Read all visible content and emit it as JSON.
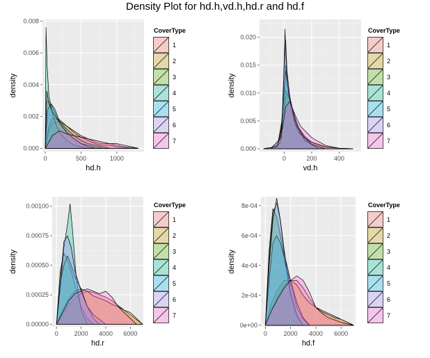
{
  "title": "Density Plot for hd.h,vd.h,hd.r and hd.f",
  "palette": {
    "1": "#F8766D",
    "2": "#C49A00",
    "3": "#53B400",
    "4": "#00C094",
    "5": "#00B6EB",
    "6": "#A58AFF",
    "7": "#FB61D7"
  },
  "chart_data": [
    {
      "type": "area",
      "xlabel": "hd.h",
      "ylabel": "density",
      "xlim": [
        -40,
        1380
      ],
      "ylim": [
        -0.0002,
        0.0081
      ],
      "xticks": [
        0,
        500,
        1000
      ],
      "xtick_labels": [
        "0",
        "500",
        "1000"
      ],
      "yticks": [
        0,
        0.002,
        0.004,
        0.006,
        0.008
      ],
      "ytick_labels": [
        "0.000",
        "0.002",
        "0.004",
        "0.006",
        "0.008"
      ],
      "legend_title": "CoverType",
      "legend_position": "right",
      "series": [
        {
          "name": "1",
          "x": [
            0,
            50,
            100,
            200,
            300,
            400,
            500,
            600,
            700,
            800,
            900,
            1000,
            1100,
            1200,
            1300
          ],
          "values": [
            0,
            0.0012,
            0.0016,
            0.0017,
            0.0014,
            0.0011,
            0.0008,
            0.0006,
            0.0004,
            0.0003,
            0.0003,
            0.0002,
            0.0001,
            5e-05,
            0
          ]
        },
        {
          "name": "2",
          "x": [
            0,
            50,
            100,
            200,
            300,
            400,
            500,
            600,
            700,
            800,
            900,
            1000,
            1100,
            1200,
            1300
          ],
          "values": [
            0,
            0.0014,
            0.0019,
            0.0018,
            0.0014,
            0.001,
            0.0007,
            0.0005,
            0.0003,
            0.0002,
            0.0002,
            0.0001,
            5e-05,
            0,
            0
          ]
        },
        {
          "name": "3",
          "x": [
            0,
            20,
            60,
            100,
            150,
            200,
            300,
            400,
            500,
            600,
            700,
            800
          ],
          "values": [
            0,
            0.003,
            0.0029,
            0.0026,
            0.0021,
            0.0016,
            0.001,
            0.0006,
            0.0003,
            0.0002,
            0.0001,
            0
          ]
        },
        {
          "name": "4",
          "x": [
            0,
            10,
            25,
            50,
            100,
            150,
            200,
            300,
            400,
            500,
            600
          ],
          "values": [
            0,
            0.0076,
            0.0052,
            0.0033,
            0.0022,
            0.0015,
            0.001,
            0.0005,
            0.0002,
            0.0001,
            0
          ]
        },
        {
          "name": "5",
          "x": [
            0,
            30,
            80,
            130,
            200,
            300,
            400,
            500,
            600,
            700,
            800,
            900
          ],
          "values": [
            0,
            0.0024,
            0.0028,
            0.0025,
            0.0017,
            0.0012,
            0.0008,
            0.0005,
            0.0003,
            0.0002,
            0.0001,
            0
          ]
        },
        {
          "name": "6",
          "x": [
            0,
            20,
            50,
            100,
            200,
            300,
            400,
            500,
            600,
            700
          ],
          "values": [
            0,
            0.0036,
            0.0028,
            0.0023,
            0.0016,
            0.001,
            0.0006,
            0.0003,
            0.0001,
            0
          ]
        },
        {
          "name": "7",
          "x": [
            0,
            100,
            200,
            300,
            400,
            500,
            600,
            700,
            800,
            900,
            1000,
            1100,
            1200,
            1300
          ],
          "values": [
            0,
            0.0008,
            0.0011,
            0.0009,
            0.0008,
            0.0007,
            0.0006,
            0.0005,
            0.0004,
            0.0003,
            0.0003,
            0.0002,
            0.0001,
            0
          ]
        }
      ]
    },
    {
      "type": "area",
      "xlabel": "vd.h",
      "ylabel": "density",
      "xlim": [
        -180,
        560
      ],
      "ylim": [
        -0.0005,
        0.0232
      ],
      "xticks": [
        0,
        200,
        400
      ],
      "xtick_labels": [
        "0",
        "200",
        "400"
      ],
      "yticks": [
        0,
        0.005,
        0.01,
        0.015,
        0.02
      ],
      "ytick_labels": [
        "0.000",
        "0.005",
        "0.010",
        "0.015",
        "0.020"
      ],
      "legend_title": "CoverType",
      "legend_position": "right",
      "series": [
        {
          "name": "1",
          "x": [
            -150,
            -50,
            -10,
            10,
            30,
            60,
            100,
            150,
            200,
            300,
            400,
            500
          ],
          "values": [
            0,
            0.0004,
            0.005,
            0.009,
            0.01,
            0.007,
            0.004,
            0.0022,
            0.0012,
            0.0004,
            0.0001,
            0
          ]
        },
        {
          "name": "2",
          "x": [
            -150,
            -50,
            -10,
            10,
            30,
            60,
            100,
            150,
            200,
            300,
            400,
            500
          ],
          "values": [
            0,
            0.0004,
            0.006,
            0.0105,
            0.0095,
            0.0065,
            0.0038,
            0.002,
            0.0011,
            0.0003,
            0.0001,
            0
          ]
        },
        {
          "name": "3",
          "x": [
            -100,
            -30,
            0,
            10,
            20,
            40,
            80,
            120,
            200,
            300
          ],
          "values": [
            0,
            0.001,
            0.01,
            0.015,
            0.0125,
            0.009,
            0.005,
            0.0025,
            0.0008,
            0
          ]
        },
        {
          "name": "4",
          "x": [
            -100,
            -20,
            0,
            5,
            15,
            30,
            60,
            100,
            200,
            300
          ],
          "values": [
            0,
            0.002,
            0.016,
            0.0215,
            0.015,
            0.01,
            0.006,
            0.003,
            0.0008,
            0
          ]
        },
        {
          "name": "5",
          "x": [
            -100,
            -30,
            0,
            10,
            20,
            40,
            80,
            120,
            200,
            300
          ],
          "values": [
            0,
            0.001,
            0.011,
            0.014,
            0.012,
            0.009,
            0.0055,
            0.0028,
            0.0008,
            0
          ]
        },
        {
          "name": "6",
          "x": [
            -100,
            -20,
            0,
            10,
            20,
            40,
            80,
            150,
            250
          ],
          "values": [
            0,
            0.002,
            0.015,
            0.0195,
            0.014,
            0.0095,
            0.0045,
            0.0015,
            0
          ]
        },
        {
          "name": "7",
          "x": [
            -150,
            -50,
            -10,
            10,
            40,
            80,
            120,
            200,
            300,
            400,
            500
          ],
          "values": [
            0,
            0.0004,
            0.004,
            0.0075,
            0.0085,
            0.006,
            0.004,
            0.002,
            0.0006,
            0.0001,
            0
          ]
        }
      ]
    },
    {
      "type": "area",
      "xlabel": "hd.r",
      "ylabel": "density",
      "xlim": [
        -350,
        7050
      ],
      "ylim": [
        -2e-05,
        0.00108
      ],
      "xticks": [
        0,
        2000,
        4000,
        6000
      ],
      "xtick_labels": [
        "0",
        "2000",
        "4000",
        "6000"
      ],
      "yticks": [
        0,
        0.00025,
        0.0005,
        0.00075,
        0.001
      ],
      "ytick_labels": [
        "0.00000",
        "0.00025",
        "0.00050",
        "0.00075",
        "0.00100"
      ],
      "legend_title": "CoverType",
      "legend_position": "right",
      "series": [
        {
          "name": "1",
          "x": [
            0,
            500,
            1000,
            1500,
            2000,
            2500,
            3000,
            3500,
            4000,
            4500,
            5000,
            5500,
            6000,
            6500,
            7000
          ],
          "values": [
            0,
            8e-05,
            0.00016,
            0.00022,
            0.00026,
            0.00028,
            0.00027,
            0.00025,
            0.00023,
            0.0002,
            0.00016,
            0.00012,
            8e-05,
            4e-05,
            0
          ]
        },
        {
          "name": "2",
          "x": [
            0,
            500,
            1000,
            1500,
            2000,
            2500,
            3000,
            3500,
            4000,
            4500,
            5000,
            5500,
            6000,
            6500,
            7000
          ],
          "values": [
            0,
            0.00012,
            0.00022,
            0.00028,
            0.0003,
            0.00028,
            0.00024,
            0.00022,
            0.0002,
            0.00017,
            0.00015,
            0.00012,
            0.0001,
            5e-05,
            0
          ]
        },
        {
          "name": "3",
          "x": [
            0,
            300,
            600,
            900,
            1200,
            1500,
            2000,
            2500,
            3000
          ],
          "values": [
            0,
            0.00045,
            0.0006,
            0.00055,
            0.00045,
            0.00033,
            0.00015,
            5e-05,
            0
          ]
        },
        {
          "name": "4",
          "x": [
            0,
            300,
            600,
            900,
            1100,
            1300,
            1600,
            2000,
            2500
          ],
          "values": [
            0,
            0.0003,
            0.00065,
            0.00085,
            0.00102,
            0.0008,
            0.0004,
            0.00012,
            0
          ]
        },
        {
          "name": "5",
          "x": [
            0,
            300,
            600,
            900,
            1200,
            1500,
            2000,
            2500,
            3000,
            3500
          ],
          "values": [
            0,
            0.00035,
            0.0005,
            0.00058,
            0.0005,
            0.0004,
            0.0003,
            0.00015,
            5e-05,
            0
          ]
        },
        {
          "name": "6",
          "x": [
            0,
            300,
            600,
            900,
            1200,
            1500,
            2000,
            2500,
            3000,
            4000
          ],
          "values": [
            0,
            0.00035,
            0.0007,
            0.00075,
            0.00065,
            0.00045,
            0.00028,
            0.00015,
            8e-05,
            0
          ]
        },
        {
          "name": "7",
          "x": [
            0,
            500,
            1000,
            1500,
            2000,
            2500,
            3000,
            3500,
            4000,
            4500,
            5000,
            6000,
            6500
          ],
          "values": [
            0,
            0.0001,
            0.0002,
            0.00026,
            0.00028,
            0.0003,
            0.00028,
            0.00026,
            0.00028,
            0.00023,
            0.00015,
            5e-05,
            0
          ]
        }
      ]
    },
    {
      "type": "area",
      "xlabel": "hd.f",
      "ylabel": "density",
      "xlim": [
        -350,
        7150
      ],
      "ylim": [
        -1e-05,
        0.00086
      ],
      "xticks": [
        0,
        2000,
        4000,
        6000
      ],
      "xtick_labels": [
        "0",
        "2000",
        "4000",
        "6000"
      ],
      "yticks": [
        0,
        0.0002,
        0.0004,
        0.0006,
        0.0008
      ],
      "ytick_labels": [
        "0e+00",
        "2e-04",
        "4e-04",
        "6e-04",
        "8e-04"
      ],
      "legend_title": "CoverType",
      "legend_position": "right",
      "series": [
        {
          "name": "1",
          "x": [
            0,
            500,
            1000,
            1500,
            2000,
            2500,
            3000,
            3500,
            4000,
            4500,
            5000,
            5500,
            6000,
            6500,
            7000
          ],
          "values": [
            0,
            0.0001,
            0.0002,
            0.00027,
            0.0003,
            0.0003,
            0.00025,
            0.00018,
            0.00012,
            0.0001,
            8e-05,
            6e-05,
            4e-05,
            2e-05,
            0
          ]
        },
        {
          "name": "2",
          "x": [
            0,
            500,
            1000,
            1500,
            2000,
            2500,
            3000,
            3500,
            4000,
            4500,
            5000,
            5500,
            6000,
            6500,
            7000
          ],
          "values": [
            0,
            0.00015,
            0.00024,
            0.0003,
            0.0003,
            0.00027,
            0.0002,
            0.00015,
            0.00012,
            9e-05,
            7e-05,
            5e-05,
            4e-05,
            2e-05,
            0
          ]
        },
        {
          "name": "3",
          "x": [
            0,
            300,
            600,
            900,
            1200,
            1500,
            2000,
            2500,
            3000
          ],
          "values": [
            0,
            0.0005,
            0.00078,
            0.00072,
            0.0006,
            0.00045,
            0.0002,
            6e-05,
            0
          ]
        },
        {
          "name": "4",
          "x": [
            0,
            300,
            600,
            900,
            1200,
            1500,
            2000,
            2500,
            3000
          ],
          "values": [
            0,
            0.00045,
            0.00075,
            0.00082,
            0.0007,
            0.0005,
            0.00022,
            7e-05,
            0
          ]
        },
        {
          "name": "5",
          "x": [
            0,
            300,
            600,
            900,
            1200,
            1500,
            2000,
            2500,
            3000,
            3500
          ],
          "values": [
            0,
            0.0003,
            0.00055,
            0.0006,
            0.00055,
            0.00045,
            0.00028,
            0.00012,
            4e-05,
            0
          ]
        },
        {
          "name": "6",
          "x": [
            0,
            300,
            600,
            900,
            1200,
            1500,
            2000,
            2500,
            3000,
            3500
          ],
          "values": [
            0,
            0.0004,
            0.0007,
            0.00085,
            0.0007,
            0.00048,
            0.0003,
            0.00015,
            5e-05,
            0
          ]
        },
        {
          "name": "7",
          "x": [
            0,
            500,
            1000,
            1500,
            2000,
            2500,
            3000,
            3500,
            4000,
            4500,
            5000,
            6000,
            7000
          ],
          "values": [
            0,
            0.0001,
            0.00018,
            0.00025,
            0.0003,
            0.00033,
            0.0003,
            0.00022,
            0.00012,
            8e-05,
            5e-05,
            2e-05,
            0
          ]
        }
      ]
    }
  ]
}
